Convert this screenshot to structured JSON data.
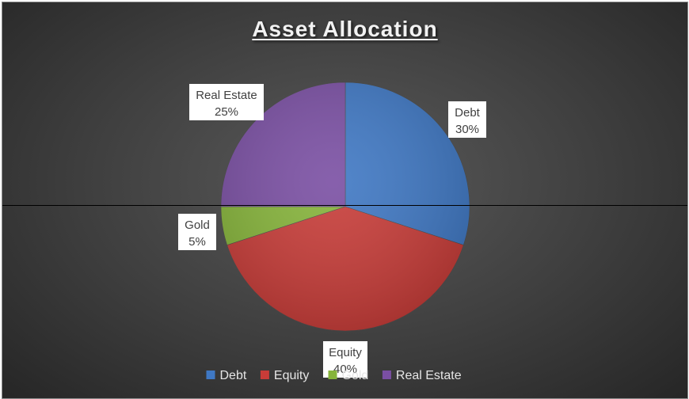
{
  "chart_data": {
    "type": "pie",
    "title": "Asset Allocation",
    "categories": [
      "Debt",
      "Equity",
      "Gold",
      "Real Estate"
    ],
    "values": [
      30,
      40,
      5,
      25
    ],
    "value_labels": [
      "30%",
      "40%",
      "5%",
      "25%"
    ],
    "colors": [
      "#3f78c4",
      "#c83c38",
      "#86b43a",
      "#7a4fa3"
    ],
    "start_angle_deg": 0,
    "direction": "clockwise",
    "legend": {
      "position": "bottom",
      "entries": [
        "Debt",
        "Equity",
        "Gold",
        "Real Estate"
      ]
    },
    "data_labels": "category-and-percent"
  }
}
